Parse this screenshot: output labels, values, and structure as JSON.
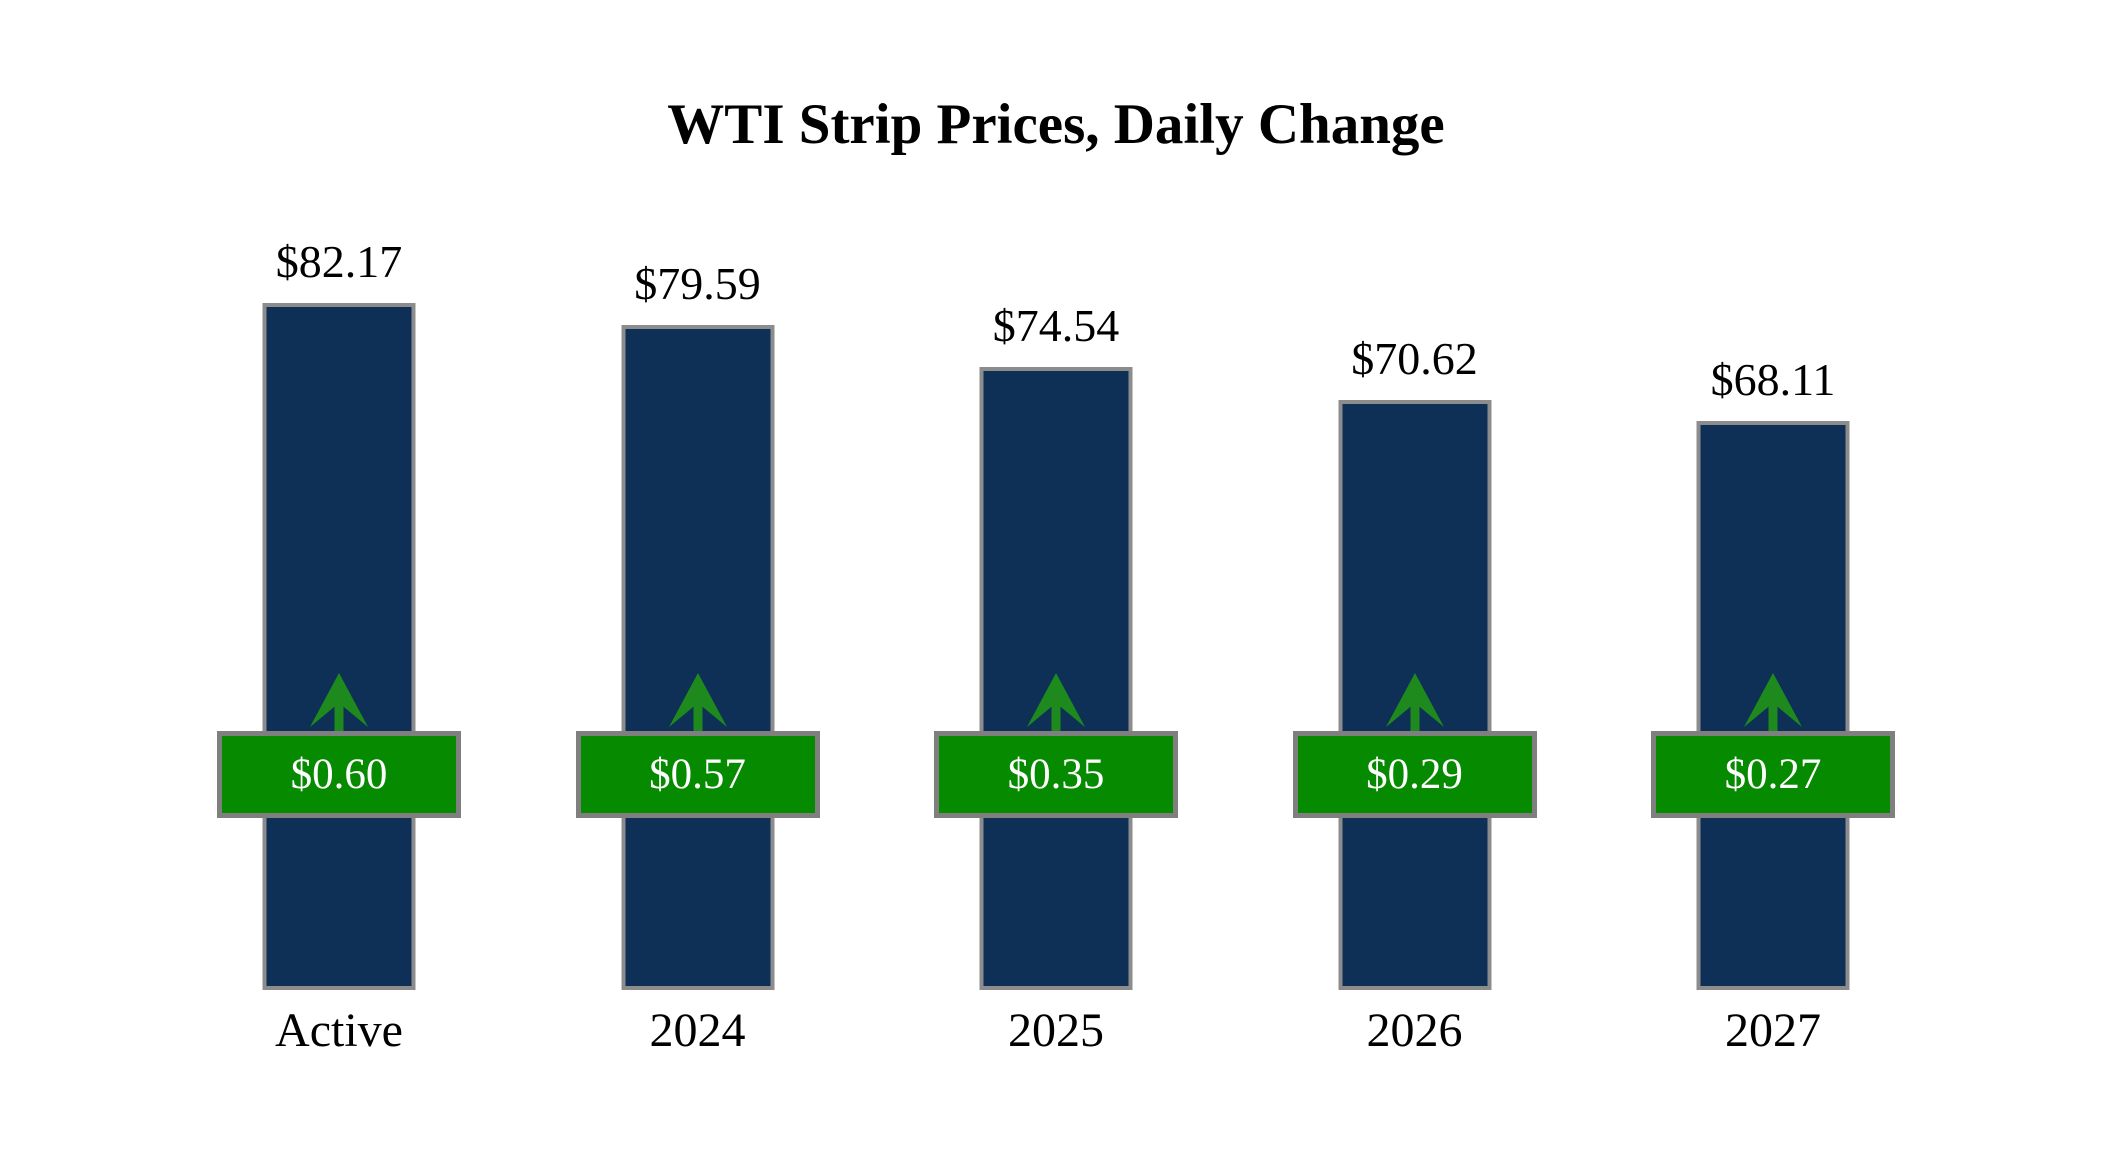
{
  "title": "WTI Strip Prices, Daily Change",
  "chart_data": {
    "type": "bar",
    "title": "WTI Strip Prices, Daily Change",
    "categories": [
      "Active",
      "2024",
      "2025",
      "2026",
      "2027"
    ],
    "series": [
      {
        "name": "Strip Price",
        "values": [
          82.17,
          79.59,
          74.54,
          70.62,
          68.11
        ]
      },
      {
        "name": "Daily Change",
        "values": [
          0.6,
          0.57,
          0.35,
          0.29,
          0.27
        ]
      }
    ],
    "value_labels": [
      "$82.17",
      "$79.59",
      "$74.54",
      "$70.62",
      "$68.11"
    ],
    "change_labels": [
      "$0.60",
      "$0.57",
      "$0.35",
      "$0.29",
      "$0.27"
    ],
    "change_direction": "up",
    "xlabel": "",
    "ylabel": "",
    "ylim": [
      0,
      82.17
    ],
    "grid": false,
    "legend": "none"
  },
  "colors": {
    "bar_fill": "#0e3057",
    "bar_border": "#8c8c8c",
    "badge_fill": "#068a00",
    "badge_border": "#7f7f7f",
    "arrow_green": "#1e8a1e",
    "title_text": "#000000",
    "label_text": "#000000",
    "badge_text": "#ffffff",
    "background": "#ffffff"
  },
  "icons": {
    "up_arrow": "up-arrow-icon"
  }
}
